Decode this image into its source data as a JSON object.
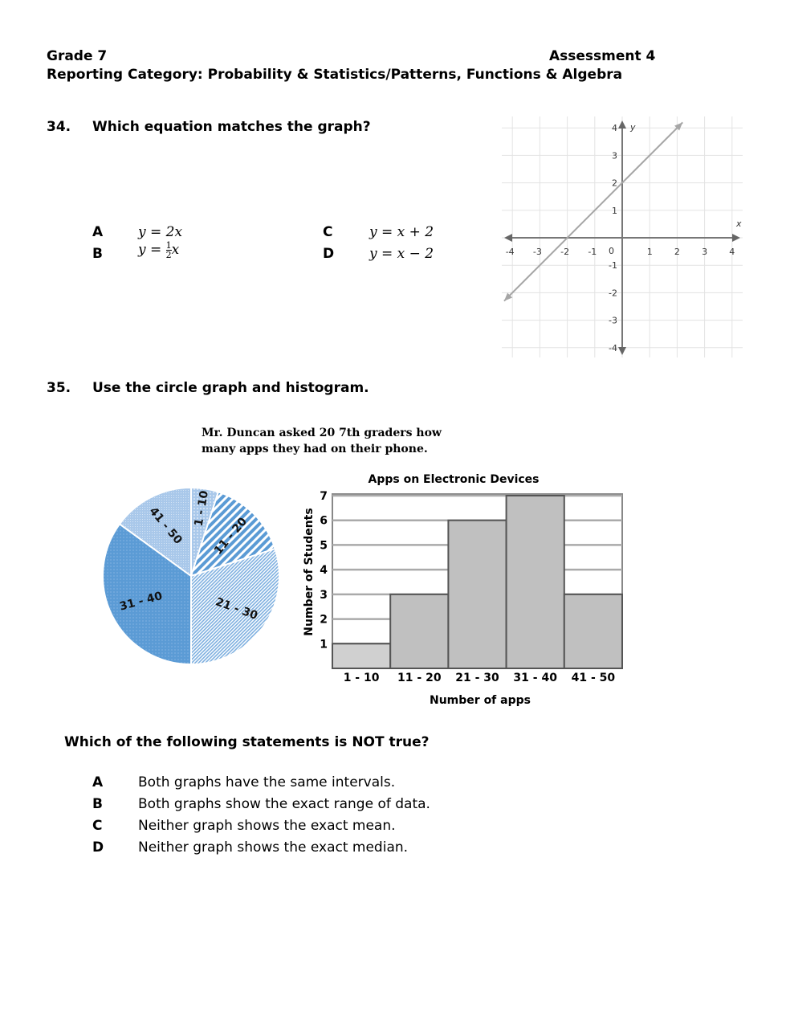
{
  "header": {
    "grade": "Grade 7",
    "assessment": "Assessment 4",
    "category": "Reporting Category: Probability & Statistics/Patterns, Functions & Algebra"
  },
  "q34": {
    "number": "34.",
    "prompt": "Which equation matches the graph?",
    "choices": [
      {
        "letter": "A",
        "eq": "y = 2x"
      },
      {
        "letter": "B",
        "eq_lhs": "y = ",
        "num": "1",
        "den": "2",
        "var": "x"
      },
      {
        "letter": "C",
        "eq": "y = x + 2"
      },
      {
        "letter": "D",
        "eq": "y = x − 2"
      }
    ]
  },
  "q35": {
    "number": "35.",
    "prompt": "Use the circle graph and histogram.",
    "caption_line1": "Mr. Duncan asked 20 7th graders how",
    "caption_line2": "many apps they had on their phone.",
    "question": "Which of the following statements is NOT true?",
    "choices": [
      {
        "letter": "A",
        "text": "Both graphs have the same intervals."
      },
      {
        "letter": "B",
        "text": "Both graphs show the exact range of data."
      },
      {
        "letter": "C",
        "text": "Neither graph shows the exact mean."
      },
      {
        "letter": "D",
        "text": "Neither graph shows the exact median."
      }
    ]
  },
  "chart_data": [
    {
      "type": "line",
      "xlabel": "x",
      "ylabel": "y",
      "xlim": [
        -4,
        4
      ],
      "ylim": [
        -4,
        4
      ],
      "xticks": [
        "-4",
        "-3",
        "-2",
        "-1",
        "1",
        "2",
        "3",
        "4"
      ],
      "yticks": [
        "4",
        "3",
        "2",
        "1",
        "-1",
        "-2",
        "-3",
        "-4"
      ],
      "origin_label": "0",
      "grid": true,
      "line": {
        "slope": 1,
        "intercept": 2,
        "x": [
          -4.3,
          2.2
        ],
        "y": [
          -2.3,
          4.2
        ],
        "arrows": "both"
      },
      "color": "#a6a6a6"
    },
    {
      "type": "pie",
      "categories": [
        "1 - 10",
        "11 - 20",
        "21 - 30",
        "31 - 40",
        "41 - 50"
      ],
      "values": [
        1,
        3,
        6,
        7,
        3
      ],
      "colors": [
        "#a9c8ea",
        "#5b9bd5",
        "#7fb0e0",
        "#5b9bd5",
        "#a9c8ea"
      ]
    },
    {
      "type": "bar",
      "title": "Apps on Electronic Devices",
      "xlabel": "Number of apps",
      "ylabel": "Number of Students",
      "categories": [
        "1 - 10",
        "11 - 20",
        "21 - 30",
        "31 - 40",
        "41 - 50"
      ],
      "values": [
        1,
        3,
        6,
        7,
        3
      ],
      "ylim": [
        0,
        7
      ],
      "yticks": [
        "1",
        "2",
        "3",
        "4",
        "5",
        "6",
        "7"
      ],
      "grid": true,
      "colors": [
        "#d0d0d0",
        "#c0c0c0",
        "#c0c0c0",
        "#c0c0c0",
        "#c0c0c0"
      ]
    }
  ]
}
